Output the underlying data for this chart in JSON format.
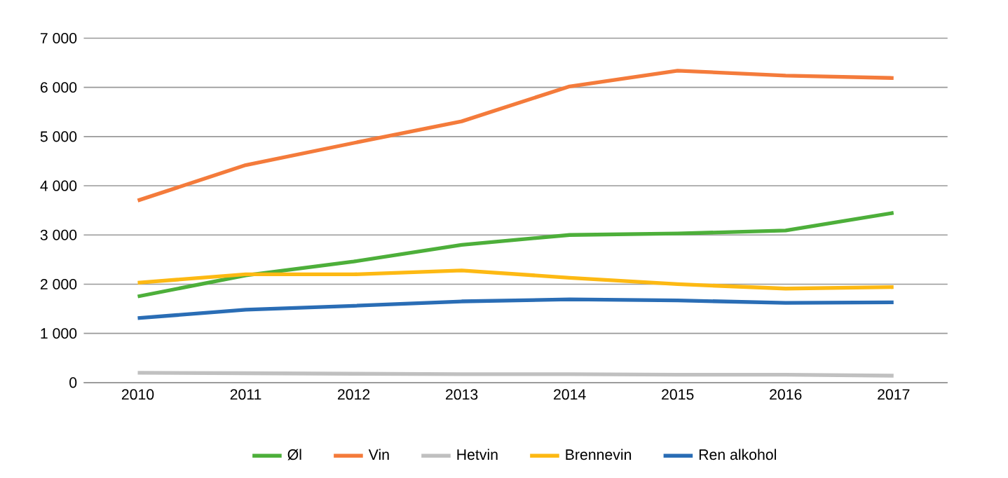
{
  "chart_data": {
    "type": "line",
    "categories": [
      "2010",
      "2011",
      "2012",
      "2013",
      "2014",
      "2015",
      "2016",
      "2017"
    ],
    "series": [
      {
        "name": "Øl",
        "color": "#4daf3a",
        "values": [
          1750,
          2180,
          2460,
          2800,
          3000,
          3030,
          3090,
          3450
        ]
      },
      {
        "name": "Vin",
        "color": "#f47b3b",
        "values": [
          3700,
          4420,
          4870,
          5310,
          6020,
          6340,
          6240,
          6190
        ]
      },
      {
        "name": "Hetvin",
        "color": "#c0c0c0",
        "values": [
          200,
          190,
          180,
          170,
          170,
          160,
          160,
          140
        ]
      },
      {
        "name": "Brennevin",
        "color": "#fdb913",
        "values": [
          2030,
          2200,
          2200,
          2280,
          2130,
          2000,
          1910,
          1940
        ]
      },
      {
        "name": "Ren alkohol",
        "color": "#2a6db5",
        "values": [
          1310,
          1480,
          1560,
          1650,
          1690,
          1670,
          1620,
          1630
        ]
      }
    ],
    "ylim": [
      0,
      7000
    ],
    "yticks": [
      0,
      {
        "value": 1000,
        "label": "1 000"
      },
      {
        "value": 2000,
        "label": "2 000"
      },
      {
        "value": 3000,
        "label": "3 000"
      },
      {
        "value": 4000,
        "label": "4 000"
      },
      {
        "value": 5000,
        "label": "5 000"
      },
      {
        "value": 6000,
        "label": "6 000"
      },
      {
        "value": 7000,
        "label": "7 000"
      }
    ],
    "grid": "y",
    "legend": "bottom",
    "marker": "none",
    "line_style": "solid"
  }
}
